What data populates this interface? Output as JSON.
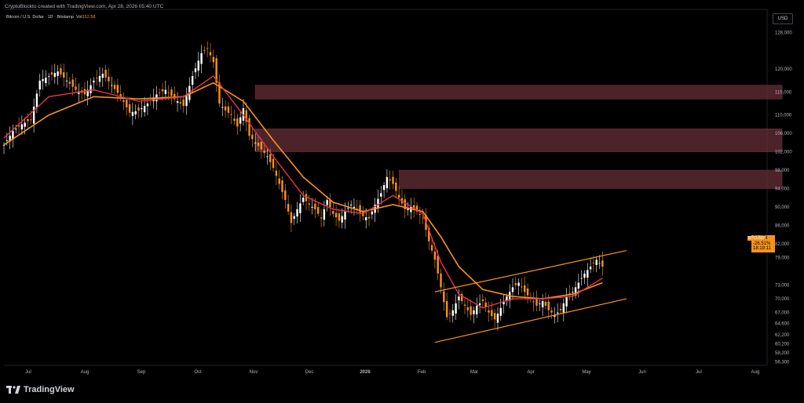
{
  "header": {
    "attribution": "CryptoBlockto created with TradingView.com, Apr 28, 2026 05:40 UTC",
    "instrument": "Bitcoin / U.S. Dollar · 1D · Bitstamp",
    "volume_label": "Vol",
    "volume_value": "152.58"
  },
  "currency_button": "USD",
  "price_tag": {
    "symbol": "BTCUSD",
    "price": "76,878",
    "change": "-26.51%",
    "countdown": "18:19:11"
  },
  "brand": {
    "name": "TradingView"
  },
  "colors": {
    "background": "#000000",
    "bull_candle": "#ffffff",
    "bear_candle": "#f7931a",
    "ma_fast": "#e8334a",
    "ma_slow": "#f7931a",
    "supply_zone": "#5a2a30",
    "channel": "#f7931a",
    "grid_text": "#b2b5be"
  },
  "chart_data": {
    "type": "candlestick",
    "x_tick_labels": [
      "Jul",
      "Aug",
      "Sep",
      "Oct",
      "Nov",
      "Dec",
      "2026",
      "Feb",
      "Mar",
      "Apr",
      "May",
      "Jun",
      "Jul",
      "Aug"
    ],
    "y_tick_labels": [
      128000,
      120000,
      115000,
      110000,
      106000,
      102000,
      98000,
      94000,
      90000,
      86000,
      82000,
      79000,
      73000,
      70000,
      67000,
      64600,
      62200,
      60200,
      58200,
      56300
    ],
    "y_tick_text": [
      "128,000",
      "120,000",
      "115,000",
      "110,000",
      "106,000",
      "102,000",
      "98,000",
      "94,000",
      "90,000",
      "86,000",
      "82,000",
      "79,000",
      "73,000",
      "70,000",
      "67,000",
      "64,600",
      "62,200",
      "60,200",
      "58,200",
      "56,300"
    ],
    "ylim": [
      55500,
      133000
    ],
    "price_path": [
      [
        0,
        103500
      ],
      [
        3,
        106500
      ],
      [
        6,
        108000
      ],
      [
        9,
        109000
      ],
      [
        12,
        117500
      ],
      [
        15,
        118500
      ],
      [
        18,
        119500
      ],
      [
        21,
        117500
      ],
      [
        24,
        115500
      ],
      [
        27,
        114500
      ],
      [
        30,
        117500
      ],
      [
        33,
        119000
      ],
      [
        36,
        116500
      ],
      [
        39,
        114000
      ],
      [
        42,
        110500
      ],
      [
        45,
        111000
      ],
      [
        48,
        112500
      ],
      [
        51,
        114500
      ],
      [
        54,
        115500
      ],
      [
        57,
        113500
      ],
      [
        60,
        112000
      ],
      [
        63,
        118500
      ],
      [
        66,
        123500
      ],
      [
        68,
        124500
      ],
      [
        70,
        121500
      ],
      [
        72,
        112500
      ],
      [
        74,
        111000
      ],
      [
        76,
        110000
      ],
      [
        78,
        107500
      ],
      [
        80,
        111500
      ],
      [
        82,
        105500
      ],
      [
        84,
        104000
      ],
      [
        86,
        102500
      ],
      [
        88,
        101000
      ],
      [
        90,
        98500
      ],
      [
        92,
        95000
      ],
      [
        94,
        91500
      ],
      [
        96,
        86500
      ],
      [
        98,
        89500
      ],
      [
        100,
        92000
      ],
      [
        102,
        90500
      ],
      [
        104,
        89500
      ],
      [
        106,
        87500
      ],
      [
        108,
        91500
      ],
      [
        110,
        88500
      ],
      [
        112,
        87000
      ],
      [
        114,
        89000
      ],
      [
        116,
        90500
      ],
      [
        118,
        89500
      ],
      [
        120,
        88000
      ],
      [
        122,
        87500
      ],
      [
        124,
        90500
      ],
      [
        126,
        93000
      ],
      [
        128,
        96500
      ],
      [
        130,
        95000
      ],
      [
        132,
        92000
      ],
      [
        134,
        89500
      ],
      [
        136,
        90000
      ],
      [
        138,
        89000
      ],
      [
        140,
        87500
      ],
      [
        142,
        82500
      ],
      [
        144,
        78500
      ],
      [
        146,
        72500
      ],
      [
        148,
        66000
      ],
      [
        150,
        67500
      ],
      [
        152,
        70500
      ],
      [
        154,
        68500
      ],
      [
        156,
        66500
      ],
      [
        158,
        68500
      ],
      [
        160,
        69500
      ],
      [
        162,
        67000
      ],
      [
        164,
        65500
      ],
      [
        166,
        68000
      ],
      [
        168,
        70500
      ],
      [
        170,
        72500
      ],
      [
        172,
        73500
      ],
      [
        174,
        71500
      ],
      [
        176,
        70000
      ],
      [
        178,
        68500
      ],
      [
        180,
        69500
      ],
      [
        182,
        67500
      ],
      [
        184,
        66500
      ],
      [
        186,
        67500
      ],
      [
        188,
        70500
      ],
      [
        190,
        71500
      ],
      [
        192,
        73500
      ],
      [
        194,
        75500
      ],
      [
        196,
        77000
      ],
      [
        198,
        78500
      ],
      [
        200,
        77000
      ]
    ],
    "ma_fast": [
      [
        0,
        105000
      ],
      [
        15,
        114000
      ],
      [
        30,
        115500
      ],
      [
        45,
        113000
      ],
      [
        60,
        114000
      ],
      [
        70,
        118500
      ],
      [
        80,
        110000
      ],
      [
        90,
        101000
      ],
      [
        100,
        92500
      ],
      [
        110,
        89500
      ],
      [
        120,
        88500
      ],
      [
        130,
        92500
      ],
      [
        140,
        88500
      ],
      [
        146,
        78000
      ],
      [
        152,
        71000
      ],
      [
        160,
        68000
      ],
      [
        170,
        70000
      ],
      [
        180,
        70000
      ],
      [
        190,
        70500
      ],
      [
        200,
        74500
      ]
    ],
    "ma_slow": [
      [
        0,
        103500
      ],
      [
        15,
        110000
      ],
      [
        30,
        114000
      ],
      [
        45,
        113500
      ],
      [
        60,
        114000
      ],
      [
        70,
        117000
      ],
      [
        80,
        113000
      ],
      [
        90,
        104500
      ],
      [
        100,
        96500
      ],
      [
        110,
        91000
      ],
      [
        120,
        89000
      ],
      [
        130,
        90500
      ],
      [
        140,
        89000
      ],
      [
        146,
        83500
      ],
      [
        152,
        77000
      ],
      [
        160,
        72000
      ],
      [
        170,
        70500
      ],
      [
        180,
        70000
      ],
      [
        190,
        71000
      ],
      [
        200,
        73500
      ]
    ],
    "supply_zones": [
      {
        "x0": 84,
        "x1": 260,
        "y_low": 113500,
        "y_high": 116500
      },
      {
        "x0": 84,
        "x1": 260,
        "y_low": 102000,
        "y_high": 107000
      },
      {
        "x0": 132,
        "x1": 260,
        "y_low": 94000,
        "y_high": 98000
      }
    ],
    "channel_upper": [
      [
        144,
        71500
      ],
      [
        208,
        80500
      ]
    ],
    "channel_lower": [
      [
        144,
        60500
      ],
      [
        208,
        70000
      ]
    ],
    "x_range": [
      0,
      255
    ]
  }
}
